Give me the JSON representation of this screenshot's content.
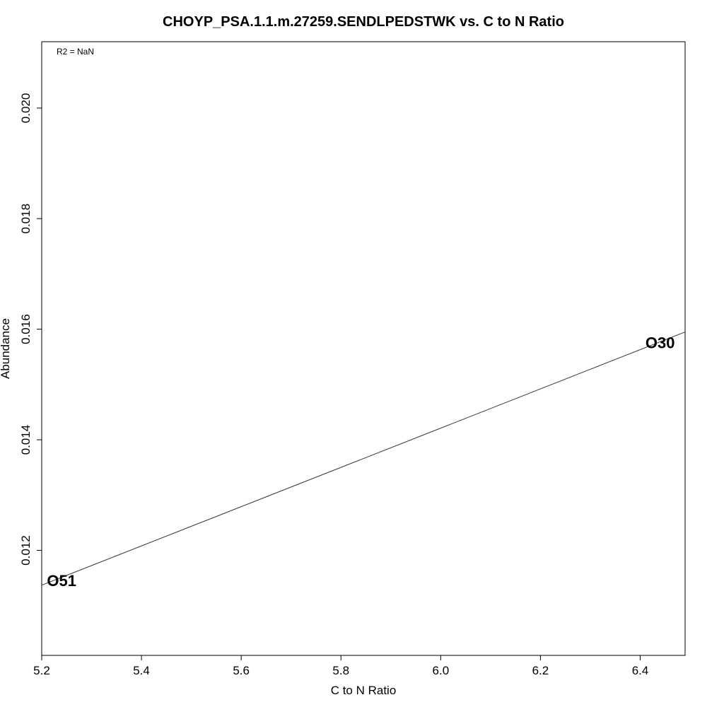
{
  "chart_data": {
    "type": "scatter",
    "title": "CHOYP_PSA.1.1.m.27259.SENDLPEDSTWK vs. C to N Ratio",
    "xlabel": "C to N Ratio",
    "ylabel": "Abundance",
    "annotation": "R2 = NaN",
    "xlim": [
      5.2,
      6.49
    ],
    "ylim": [
      0.0101,
      0.0212
    ],
    "xticks": [
      5.2,
      5.4,
      5.6,
      5.8,
      6.0,
      6.2,
      6.4
    ],
    "xtick_labels": [
      "5.2",
      "5.4",
      "5.6",
      "5.8",
      "6.0",
      "6.2",
      "6.4"
    ],
    "yticks": [
      0.012,
      0.014,
      0.016,
      0.018,
      0.02
    ],
    "ytick_labels": [
      "0.012",
      "0.014",
      "0.016",
      "0.018",
      "0.020"
    ],
    "points": [
      {
        "label": "O51",
        "x": 5.24,
        "y": 0.01145
      },
      {
        "label": "O30",
        "x": 6.44,
        "y": 0.01575
      }
    ],
    "fit_line": {
      "x": [
        5.2,
        6.49
      ],
      "y": [
        0.01137,
        0.01595
      ]
    },
    "grid": false,
    "colors": {
      "line": "#333333",
      "text": "#000000",
      "frame": "#000000"
    }
  }
}
